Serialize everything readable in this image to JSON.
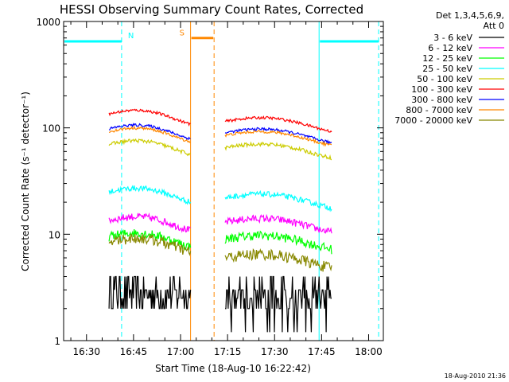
{
  "chart_data": {
    "type": "line",
    "title": "HESSI Observing Summary Count Rates, Corrected",
    "xlabel": "Start Time (18-Aug-10 16:22:42)",
    "ylabel": "Corrected Count Rate (s⁻¹ detector⁻¹)",
    "yscale": "log",
    "ylim": [
      1,
      1000
    ],
    "xlim_minutes": [
      0,
      102
    ],
    "x_ticks": [
      "16:30",
      "16:45",
      "17:00",
      "17:15",
      "17:30",
      "17:45",
      "18:00"
    ],
    "y_ticks": [
      "1",
      "10",
      "100",
      "1000"
    ],
    "legend_header": [
      "Det 1,3,4,5,6,9,",
      "Att 0"
    ],
    "legend_position": "right",
    "series": [
      {
        "name": "3 - 6 keV",
        "color": "#000000",
        "level_a": 3.0,
        "level_b": 2.5,
        "noise": 0.35
      },
      {
        "name": "6 - 12 keV",
        "color": "#ff00ff",
        "level_a": 13.5,
        "level_b": 13.0,
        "noise": 0.08
      },
      {
        "name": "12 - 25 keV",
        "color": "#00ff00",
        "level_a": 9.5,
        "level_b": 9.0,
        "noise": 0.1
      },
      {
        "name": "25 - 50 keV",
        "color": "#00ffff",
        "level_a": 25,
        "level_b": 22,
        "noise": 0.06
      },
      {
        "name": "50 - 100 keV",
        "color": "#cccc00",
        "level_a": 70,
        "level_b": 65,
        "noise": 0.04
      },
      {
        "name": "100 - 300 keV",
        "color": "#ff0000",
        "level_a": 135,
        "level_b": 115,
        "noise": 0.03
      },
      {
        "name": "300 - 800 keV",
        "color": "#0000ff",
        "level_a": 98,
        "level_b": 90,
        "noise": 0.03
      },
      {
        "name": "800 - 7000 keV",
        "color": "#ff8800",
        "level_a": 92,
        "level_b": 85,
        "noise": 0.03
      },
      {
        "name": "7000 - 20000 keV",
        "color": "#888800",
        "level_a": 8.5,
        "level_b": 6.0,
        "noise": 0.12
      }
    ],
    "data_intervals_minutes": [
      [
        14.5,
        40.5
      ],
      [
        51.5,
        85.5
      ]
    ],
    "saa_band": {
      "label": "S",
      "color": "#ff8800",
      "level": 700,
      "x_range": [
        40.5,
        48
      ]
    },
    "night_bands": [
      {
        "label": "N",
        "color": "#00ffff",
        "level": 650,
        "x_range": [
          0,
          18.5
        ]
      },
      {
        "label": "",
        "color": "#00ffff",
        "level": 650,
        "x_range": [
          81.5,
          100.5
        ]
      }
    ],
    "timestamp": "18-Aug-2010 21:36"
  }
}
